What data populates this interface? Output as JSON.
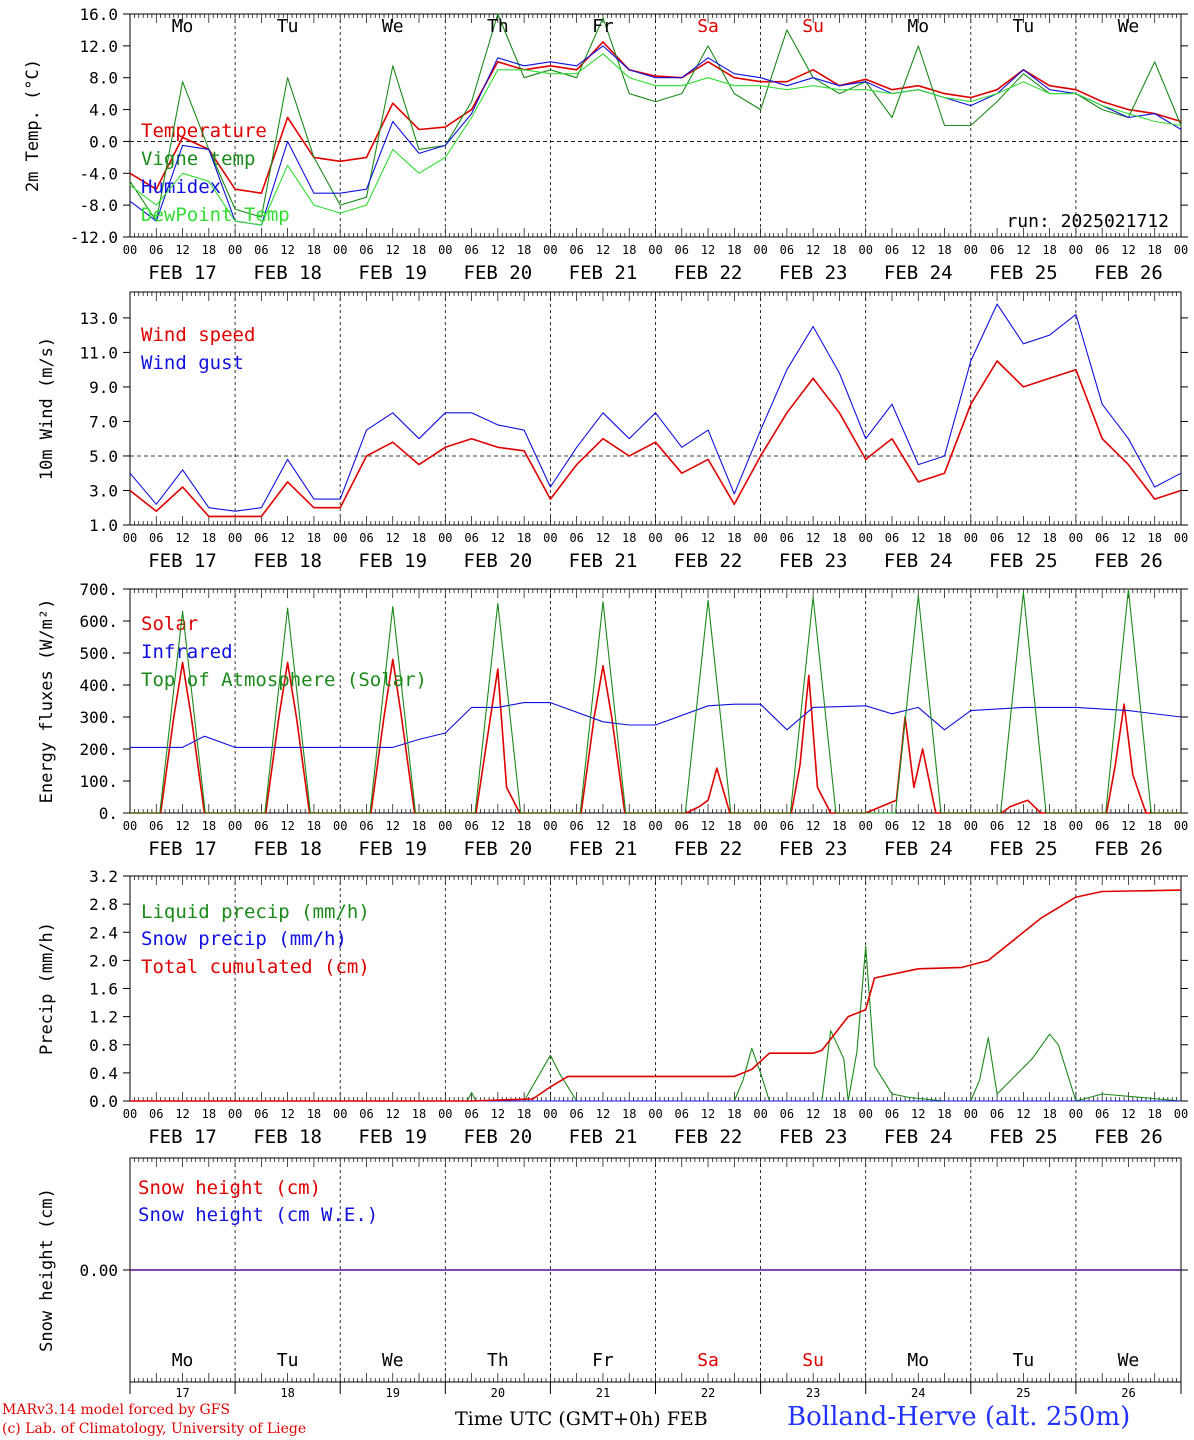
{
  "days": [
    "FEB 17",
    "FEB 18",
    "FEB 19",
    "FEB 20",
    "FEB 21",
    "FEB 22",
    "FEB 23",
    "FEB 24",
    "FEB 25",
    "FEB 26"
  ],
  "day_numbers": [
    "17",
    "18",
    "19",
    "20",
    "21",
    "22",
    "23",
    "24",
    "25",
    "26"
  ],
  "weekdays": [
    "Mo",
    "Tu",
    "We",
    "Th",
    "Fr",
    "Sa",
    "Su",
    "Mo",
    "Tu",
    "We"
  ],
  "weekday_colors": [
    "#000000",
    "#000000",
    "#000000",
    "#000000",
    "#000000",
    "#e00000",
    "#e00000",
    "#000000",
    "#000000",
    "#000000"
  ],
  "hour_labels": [
    "00",
    "06",
    "12",
    "18"
  ],
  "footer": {
    "credit_line1": "MARv3.14 model forced by GFS",
    "credit_line2": "(c) Lab. of Climatology, University of Liege",
    "x_title": "Time UTC (GMT+0h) FEB",
    "station": "Bolland-Herve (alt. 250m)"
  },
  "chart_data": [
    {
      "type": "line",
      "ylabel": "2m Temp. (°C)",
      "annotation": "run: 2025021712",
      "ylim": [
        -12,
        16
      ],
      "yticks": [
        "-12.0",
        "-8.0",
        "-4.0",
        "0.0",
        "4.0",
        "8.0",
        "12.0",
        "16.0"
      ],
      "ref_line": 0,
      "x_hours": [
        0,
        240
      ],
      "series": [
        {
          "name": "Temperature",
          "color": "#e00000",
          "x": [
            0,
            6,
            12,
            18,
            24,
            30,
            36,
            42,
            48,
            54,
            60,
            66,
            72,
            78,
            84,
            90,
            96,
            102,
            108,
            114,
            120,
            126,
            132,
            138,
            144,
            150,
            156,
            162,
            168,
            174,
            180,
            186,
            192,
            198,
            204,
            210,
            216,
            222,
            228,
            234,
            240
          ],
          "y": [
            -4.0,
            -6.0,
            0.5,
            -1.0,
            -6.0,
            -6.5,
            3.0,
            -2.0,
            -2.5,
            -2.0,
            4.8,
            1.5,
            1.8,
            4.0,
            10.0,
            9.0,
            9.5,
            9.0,
            12.5,
            9.0,
            8.2,
            8.0,
            10.0,
            8.0,
            7.5,
            7.5,
            9.0,
            7.0,
            7.8,
            6.5,
            7.0,
            6.0,
            5.5,
            6.5,
            9.0,
            7.0,
            6.5,
            5.0,
            4.0,
            3.5,
            2.5
          ]
        },
        {
          "name": "Vigne temp",
          "color": "#1a8a1a",
          "x": [
            0,
            6,
            12,
            18,
            24,
            30,
            36,
            42,
            48,
            54,
            60,
            66,
            72,
            78,
            84,
            90,
            96,
            102,
            108,
            114,
            120,
            126,
            132,
            138,
            144,
            150,
            156,
            162,
            168,
            174,
            180,
            186,
            192,
            198,
            204,
            210,
            216,
            222,
            228,
            234,
            240
          ],
          "y": [
            -5.0,
            -10.0,
            7.5,
            -1.0,
            -8.5,
            -9.5,
            8.0,
            -2.0,
            -8.0,
            -7.0,
            9.5,
            -1.0,
            -0.5,
            5.0,
            16.0,
            8.0,
            9.0,
            8.0,
            15.5,
            6.0,
            5.0,
            6.0,
            12.0,
            6.0,
            4.0,
            14.0,
            8.0,
            6.0,
            7.5,
            3.0,
            12.0,
            2.0,
            2.0,
            5.0,
            8.5,
            6.0,
            6.0,
            4.0,
            3.0,
            10.0,
            2.0
          ]
        },
        {
          "name": "Humidex",
          "color": "#1010e0",
          "x": [
            0,
            6,
            12,
            18,
            24,
            30,
            36,
            42,
            48,
            54,
            60,
            66,
            72,
            78,
            84,
            90,
            96,
            102,
            108,
            114,
            120,
            126,
            132,
            138,
            144,
            150,
            156,
            162,
            168,
            174,
            180,
            186,
            192,
            198,
            204,
            210,
            216,
            222,
            228,
            234,
            240
          ],
          "y": [
            -7.5,
            -10.0,
            -0.5,
            -1.0,
            -10.0,
            -10.5,
            0.0,
            -6.5,
            -6.5,
            -6.0,
            2.5,
            -1.5,
            -0.5,
            3.5,
            10.5,
            9.5,
            10.0,
            9.5,
            12.0,
            9.0,
            8.0,
            8.0,
            10.5,
            8.5,
            8.0,
            7.0,
            8.0,
            7.0,
            7.5,
            6.0,
            6.5,
            5.5,
            4.5,
            6.0,
            9.0,
            6.5,
            6.0,
            4.5,
            3.0,
            3.5,
            1.5
          ]
        },
        {
          "name": "DewPoint Temp",
          "color": "#33dd33",
          "x": [
            0,
            6,
            12,
            18,
            24,
            30,
            36,
            42,
            48,
            54,
            60,
            66,
            72,
            78,
            84,
            90,
            96,
            102,
            108,
            114,
            120,
            126,
            132,
            138,
            144,
            150,
            156,
            162,
            168,
            174,
            180,
            186,
            192,
            198,
            204,
            210,
            216,
            222,
            228,
            234,
            240
          ],
          "y": [
            -5.5,
            -8.0,
            -4.0,
            -5.0,
            -10.0,
            -10.5,
            -3.0,
            -8.0,
            -9.0,
            -8.0,
            -1.0,
            -4.0,
            -2.0,
            3.0,
            9.0,
            9.0,
            8.5,
            8.5,
            11.0,
            8.0,
            7.0,
            7.0,
            8.0,
            7.0,
            7.0,
            6.5,
            7.0,
            6.5,
            6.5,
            6.0,
            6.5,
            5.5,
            5.0,
            6.0,
            7.5,
            6.0,
            6.0,
            4.5,
            3.5,
            2.5,
            2.0
          ]
        }
      ]
    },
    {
      "type": "line",
      "ylabel": "10m Wind (m/s)",
      "ylim": [
        1,
        14.5
      ],
      "yticks": [
        "1.0",
        "3.0",
        "5.0",
        "7.0",
        "9.0",
        "11.0",
        "13.0"
      ],
      "ref_line": 5,
      "series": [
        {
          "name": "Wind speed",
          "color": "#e00000",
          "x": [
            0,
            6,
            12,
            18,
            24,
            30,
            36,
            42,
            48,
            54,
            60,
            66,
            72,
            78,
            84,
            90,
            96,
            102,
            108,
            114,
            120,
            126,
            132,
            138,
            144,
            150,
            156,
            162,
            168,
            174,
            180,
            186,
            192,
            198,
            204,
            210,
            216,
            222,
            228,
            234,
            240
          ],
          "y": [
            3.0,
            1.8,
            3.2,
            1.5,
            1.5,
            1.5,
            3.5,
            2.0,
            2.0,
            5.0,
            5.8,
            4.5,
            5.5,
            6.0,
            5.5,
            5.3,
            2.5,
            4.5,
            6.0,
            5.0,
            5.8,
            4.0,
            4.8,
            2.2,
            5.0,
            7.5,
            9.5,
            7.5,
            4.8,
            6.0,
            3.5,
            4.0,
            8.0,
            10.5,
            9.0,
            9.5,
            10.0,
            6.0,
            4.5,
            2.5,
            3.0
          ]
        },
        {
          "name": "Wind gust",
          "color": "#1010e0",
          "x": [
            0,
            6,
            12,
            18,
            24,
            30,
            36,
            42,
            48,
            54,
            60,
            66,
            72,
            78,
            84,
            90,
            96,
            102,
            108,
            114,
            120,
            126,
            132,
            138,
            144,
            150,
            156,
            162,
            168,
            174,
            180,
            186,
            192,
            198,
            204,
            210,
            216,
            222,
            228,
            234,
            240
          ],
          "y": [
            4.0,
            2.2,
            4.2,
            2.0,
            1.8,
            2.0,
            4.8,
            2.5,
            2.5,
            6.5,
            7.5,
            6.0,
            7.5,
            7.5,
            6.8,
            6.5,
            3.2,
            5.5,
            7.5,
            6.0,
            7.5,
            5.5,
            6.5,
            2.8,
            6.5,
            10.0,
            12.5,
            9.8,
            6.0,
            8.0,
            4.5,
            5.0,
            10.5,
            13.8,
            11.5,
            12.0,
            13.2,
            8.0,
            6.0,
            3.2,
            4.0
          ]
        }
      ]
    },
    {
      "type": "line",
      "ylabel": "Energy fluxes (W/m²)",
      "ylim": [
        0,
        700
      ],
      "yticks": [
        "0.",
        "100.",
        "200.",
        "300.",
        "400.",
        "500.",
        "600.",
        "700."
      ],
      "series": [
        {
          "name": "Solar",
          "color": "#e00000",
          "x": [
            0,
            7,
            10,
            12,
            14,
            17,
            24,
            31,
            34,
            36,
            38,
            41,
            48,
            55,
            58,
            60,
            62,
            65,
            72,
            79,
            81,
            84,
            86,
            89,
            96,
            103,
            106,
            108,
            110,
            113,
            120,
            127,
            130,
            132,
            134,
            137,
            144,
            151,
            153,
            155,
            157,
            160,
            168,
            175,
            177,
            179,
            181,
            184,
            192,
            199,
            201,
            203,
            205,
            208,
            216,
            223,
            225,
            227,
            229,
            232,
            240
          ],
          "y": [
            0,
            0,
            300,
            470,
            300,
            0,
            0,
            0,
            300,
            470,
            300,
            0,
            0,
            0,
            300,
            480,
            300,
            0,
            0,
            0,
            180,
            450,
            80,
            0,
            0,
            0,
            300,
            460,
            300,
            0,
            0,
            0,
            20,
            40,
            140,
            0,
            0,
            0,
            150,
            430,
            80,
            0,
            0,
            40,
            300,
            80,
            200,
            0,
            0,
            0,
            20,
            30,
            40,
            0,
            0,
            0,
            150,
            340,
            120,
            0,
            0
          ]
        },
        {
          "name": "Infrared",
          "color": "#1010e0",
          "x": [
            0,
            12,
            17,
            24,
            36,
            48,
            60,
            66,
            72,
            78,
            84,
            90,
            96,
            108,
            114,
            120,
            132,
            138,
            144,
            150,
            156,
            168,
            174,
            180,
            186,
            192,
            204,
            216,
            228,
            240
          ],
          "y": [
            205,
            205,
            240,
            205,
            205,
            205,
            205,
            230,
            250,
            330,
            330,
            345,
            345,
            285,
            275,
            275,
            335,
            340,
            340,
            260,
            330,
            335,
            310,
            330,
            260,
            320,
            330,
            330,
            320,
            300
          ]
        },
        {
          "name": "Top of Atmosphere (Solar)",
          "color": "#1a8a1a",
          "x": [
            0,
            6.8,
            12,
            17.2,
            24,
            30.8,
            36,
            41.2,
            48,
            54.8,
            60,
            65.2,
            72,
            78.8,
            84,
            89.2,
            96,
            102.8,
            108,
            113.2,
            120,
            126.8,
            132,
            137.2,
            144,
            150.8,
            156,
            161.2,
            168,
            174.8,
            180,
            185.2,
            192,
            198.8,
            204,
            209.2,
            216,
            222.8,
            228,
            233.2,
            240
          ],
          "y": [
            0,
            0,
            630,
            0,
            0,
            0,
            640,
            0,
            0,
            0,
            645,
            0,
            0,
            0,
            655,
            0,
            0,
            0,
            660,
            0,
            0,
            0,
            665,
            0,
            0,
            0,
            675,
            0,
            0,
            0,
            680,
            0,
            0,
            0,
            690,
            0,
            0,
            0,
            700,
            0,
            0
          ]
        }
      ]
    },
    {
      "type": "line",
      "ylabel": "Precip (mm/h)",
      "ylim": [
        0,
        3.2
      ],
      "yticks": [
        "0.0",
        "0.4",
        "0.8",
        "1.2",
        "1.6",
        "2.0",
        "2.4",
        "2.8",
        "3.2"
      ],
      "series": [
        {
          "name": "Liquid precip (mm/h)",
          "color": "#1a8a1a",
          "x": [
            0,
            77,
            78,
            79,
            90,
            96,
            98,
            102,
            110,
            138,
            140,
            142,
            144,
            146,
            150,
            158,
            160,
            163,
            164,
            166,
            168,
            170,
            174,
            178,
            186,
            192,
            194,
            196,
            198,
            206,
            210,
            212,
            216,
            222,
            240
          ],
          "y": [
            0,
            0,
            0.12,
            0,
            0,
            0.65,
            0.4,
            0,
            0,
            0,
            0.3,
            0.75,
            0.4,
            0,
            0,
            0,
            1.0,
            0.6,
            0,
            0.7,
            2.2,
            0.5,
            0.1,
            0.05,
            0,
            0,
            0.3,
            0.9,
            0.1,
            0.6,
            0.95,
            0.8,
            0,
            0.1,
            0
          ]
        },
        {
          "name": "Snow precip (mm/h)",
          "color": "#1010e0",
          "x": [
            0,
            240
          ],
          "y": [
            0,
            0
          ]
        },
        {
          "name": "Total cumulated (cm)",
          "color": "#e00000",
          "x": [
            0,
            78,
            92,
            96,
            100,
            104,
            138,
            142,
            146,
            156,
            158,
            164,
            168,
            170,
            180,
            190,
            196,
            204,
            208,
            216,
            222,
            240
          ],
          "y": [
            0,
            0,
            0.03,
            0.2,
            0.35,
            0.35,
            0.35,
            0.45,
            0.68,
            0.68,
            0.72,
            1.2,
            1.3,
            1.75,
            1.88,
            1.9,
            2.0,
            2.4,
            2.6,
            2.9,
            2.98,
            3.0
          ]
        }
      ]
    },
    {
      "type": "line",
      "ylabel": "Snow height (cm)",
      "ylim": [
        -1,
        1
      ],
      "yticks": [
        "0.00"
      ],
      "series": [
        {
          "name": "Snow height (cm)",
          "color": "#e00000",
          "x": [
            0,
            240
          ],
          "y": [
            0,
            0
          ]
        },
        {
          "name": "Snow height (cm W.E.)",
          "color": "#1010e0",
          "x": [
            0,
            240
          ],
          "y": [
            0,
            0
          ]
        }
      ]
    }
  ]
}
